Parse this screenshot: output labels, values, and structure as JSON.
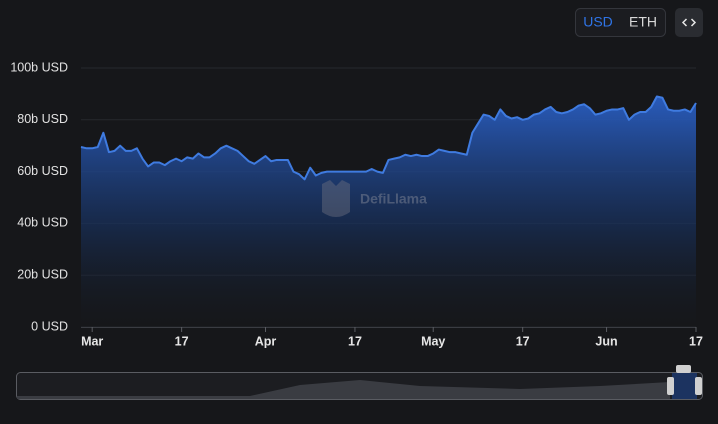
{
  "currency_toggle": [
    "USD",
    "ETH"
  ],
  "watermark": "DefiLlama",
  "chart_data": {
    "type": "area",
    "color": "#3f7be0",
    "categories": [
      null,
      null,
      "Mar",
      null,
      null,
      null,
      null,
      null,
      null,
      null,
      null,
      null,
      null,
      null,
      null,
      null,
      null,
      null,
      "17",
      null,
      null,
      null,
      null,
      null,
      null,
      null,
      null,
      null,
      null,
      null,
      null,
      null,
      null,
      "Apr",
      null,
      null,
      null,
      null,
      null,
      null,
      null,
      null,
      null,
      null,
      null,
      null,
      null,
      null,
      null,
      "17",
      null,
      null,
      null,
      null,
      null,
      null,
      null,
      null,
      null,
      null,
      null,
      null,
      null,
      "May",
      null,
      null,
      null,
      null,
      null,
      null,
      null,
      null,
      null,
      null,
      null,
      null,
      null,
      null,
      null,
      "17",
      null,
      null,
      null,
      null,
      null,
      null,
      null,
      null,
      null,
      null,
      null,
      null,
      null,
      null,
      "Jun",
      null,
      null,
      null,
      null,
      null,
      null,
      null,
      null,
      null,
      null,
      null,
      null,
      null,
      null,
      null,
      "17"
    ],
    "values": [
      69.5,
      69,
      69,
      69.5,
      75,
      67.5,
      68,
      70,
      68,
      68,
      69,
      65,
      62,
      63.5,
      63.5,
      62.5,
      64,
      65,
      64,
      65.5,
      65,
      67,
      65.5,
      65.5,
      67,
      69,
      70,
      69,
      68,
      66,
      64,
      63,
      64.5,
      66,
      64,
      64.5,
      64.5,
      64.5,
      60,
      59,
      57,
      61.5,
      58.5,
      59.5,
      60,
      60,
      60,
      60,
      60,
      60,
      60,
      60,
      61,
      60,
      59.5,
      64.5,
      65,
      65.5,
      66.5,
      66,
      66.5,
      66,
      66,
      67,
      68.5,
      68,
      67.5,
      67.5,
      67,
      66.5,
      75,
      78.5,
      82,
      81.5,
      80,
      84,
      81.5,
      80.5,
      81,
      80,
      80.5,
      82,
      82.5,
      84,
      85,
      83,
      82.5,
      83,
      84,
      85.5,
      86,
      84.5,
      82,
      82.5,
      83.5,
      84,
      84,
      84.5,
      80,
      82,
      83,
      83,
      85,
      89,
      88.5,
      84,
      83.5,
      83.5,
      84,
      83,
      86.5
    ],
    "ylim": [
      0,
      100
    ],
    "yticks": [
      {
        "value": 0,
        "label": "0 USD"
      },
      {
        "value": 20,
        "label": "20b USD"
      },
      {
        "value": 40,
        "label": "40b USD"
      },
      {
        "value": 60,
        "label": "60b USD"
      },
      {
        "value": 80,
        "label": "80b USD"
      },
      {
        "value": 100,
        "label": "100b USD"
      }
    ],
    "grid": true
  }
}
